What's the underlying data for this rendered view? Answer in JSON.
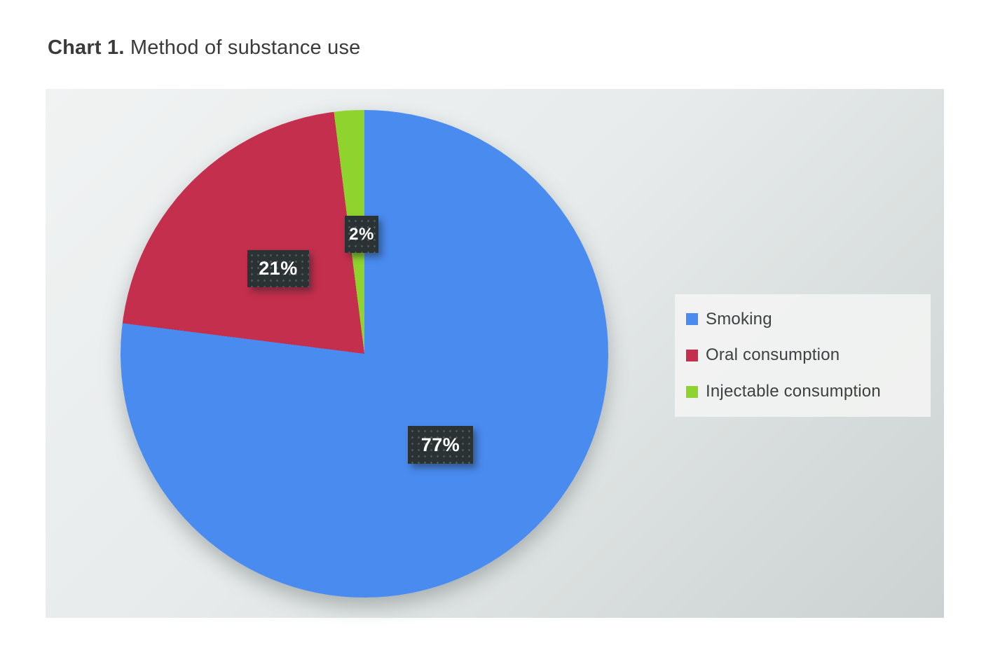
{
  "page": {
    "title_prefix": "Chart 1.",
    "title_rest": " Method of substance use"
  },
  "chart_data": {
    "type": "pie",
    "title": "Chart 1. Method of substance use",
    "categories": [
      "Smoking",
      "Oral consumption",
      "Injectable consumption"
    ],
    "values": [
      77,
      21,
      2
    ],
    "unit": "%",
    "value_labels": [
      "77%",
      "21%",
      "2%"
    ],
    "colors": [
      "#4a8bf0",
      "#c52f4e",
      "#8fd32f"
    ],
    "start_angle_deg": 0,
    "direction": "clockwise",
    "legend_position": "right",
    "data_label_style": {
      "background": "#2b3233",
      "text_color": "#ffffff"
    }
  },
  "legend": {
    "items": [
      {
        "label": "Smoking",
        "color": "#4a8bf0"
      },
      {
        "label": "Oral consumption",
        "color": "#c52f4e"
      },
      {
        "label": "Injectable consumption",
        "color": "#8fd32f"
      }
    ]
  }
}
